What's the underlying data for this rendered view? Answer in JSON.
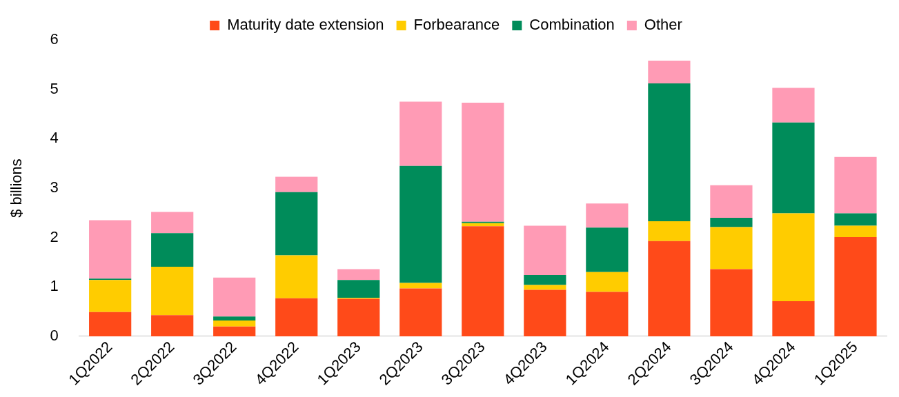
{
  "chart_data": {
    "type": "bar",
    "stacked": true,
    "ylabel": "$ billions",
    "categories": [
      "1Q2022",
      "2Q2022",
      "3Q2022",
      "4Q2022",
      "1Q2023",
      "2Q2023",
      "3Q2023",
      "4Q2023",
      "1Q2024",
      "2Q2024",
      "3Q2024",
      "4Q2024",
      "1Q2025"
    ],
    "series": [
      {
        "name": "Maturity date extension",
        "color": "#ff4a19",
        "values": [
          0.49,
          0.43,
          0.2,
          0.77,
          0.76,
          0.97,
          2.23,
          0.94,
          0.9,
          1.93,
          1.36,
          0.71,
          2.01
        ]
      },
      {
        "name": "Forbearance",
        "color": "#ffcc00",
        "values": [
          0.65,
          0.98,
          0.12,
          0.87,
          0.02,
          0.11,
          0.06,
          0.1,
          0.4,
          0.4,
          0.85,
          1.78,
          0.23
        ]
      },
      {
        "name": "Combination",
        "color": "#008c5a",
        "values": [
          0.03,
          0.68,
          0.08,
          1.28,
          0.36,
          2.37,
          0.03,
          0.2,
          0.9,
          2.79,
          0.19,
          1.84,
          0.25
        ]
      },
      {
        "name": "Other",
        "color": "#ff9bb5",
        "values": [
          1.18,
          0.43,
          0.79,
          0.31,
          0.22,
          1.3,
          2.41,
          1.0,
          0.49,
          0.46,
          0.66,
          0.7,
          1.14
        ]
      }
    ],
    "ylim": [
      0,
      6
    ],
    "yticks": [
      0,
      1,
      2,
      3,
      4,
      5,
      6
    ],
    "grid": false,
    "legend": "top"
  }
}
